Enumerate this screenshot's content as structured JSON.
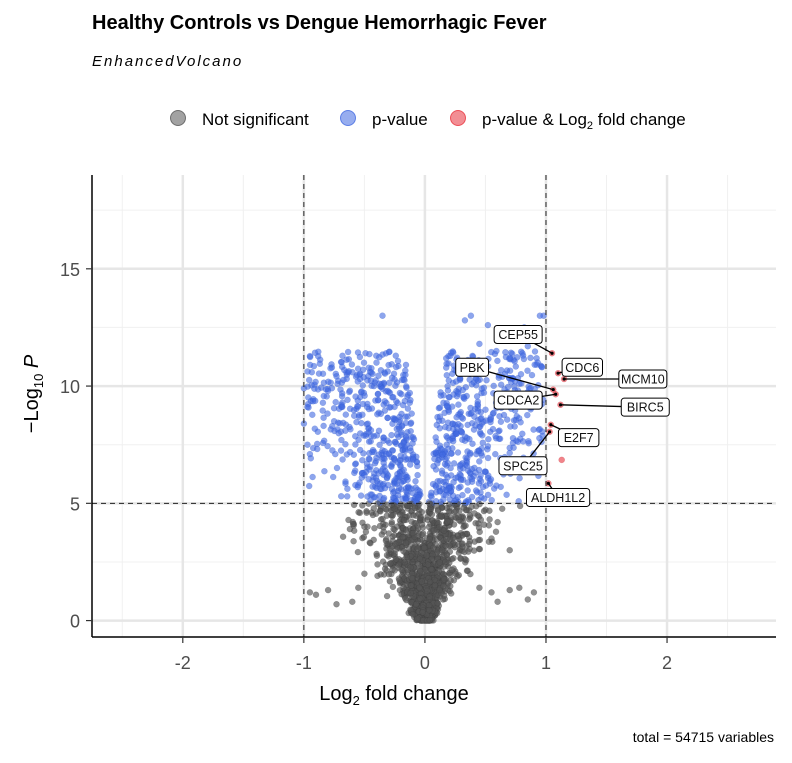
{
  "chart_data": {
    "type": "scatter",
    "title": "Healthy Controls vs Dengue Hemorrhagic Fever",
    "subtitle": "EnhancedVolcano",
    "caption": "total = 54715 variables",
    "xlabel": {
      "main": "Log",
      "sub": "2",
      "rest": " fold change"
    },
    "ylabel": {
      "prefix": "−Log",
      "sub": "10",
      "var": " P"
    },
    "xlim": [
      -2.75,
      2.9
    ],
    "ylim": [
      -0.7,
      19
    ],
    "xticks": [
      -2,
      -1,
      0,
      1,
      2
    ],
    "xtick_labels": [
      "-2",
      "-1",
      "0",
      "1",
      "2"
    ],
    "yticks": [
      0,
      5,
      10,
      15
    ],
    "ytick_labels": [
      "0",
      "5",
      "10",
      "15"
    ],
    "grid": true,
    "legend_position": "top",
    "cutoffs": {
      "log2fc": [
        -1,
        1
      ],
      "neglog10p": 5
    },
    "series": [
      {
        "name": "Not significant",
        "color": "#555555"
      },
      {
        "name": "p-value",
        "color": "#4169e1"
      },
      {
        "name": "p-value &  Log",
        "sub": "2",
        "rest": " fold change",
        "color": "#e8323c"
      }
    ],
    "highlighted": [
      {
        "label": "CEP55",
        "x": 1.05,
        "y": 11.4,
        "lx": 0.77,
        "ly": 12.2
      },
      {
        "label": "CDC6",
        "x": 1.1,
        "y": 10.55,
        "lx": 1.3,
        "ly": 10.8
      },
      {
        "label": "MCM10",
        "x": 1.15,
        "y": 10.3,
        "lx": 1.8,
        "ly": 10.3
      },
      {
        "label": "PBK",
        "x": 1.06,
        "y": 9.85,
        "lx": 0.39,
        "ly": 10.8
      },
      {
        "label": "CDCA2",
        "x": 1.08,
        "y": 9.65,
        "lx": 0.77,
        "ly": 9.4
      },
      {
        "label": "BIRC5",
        "x": 1.12,
        "y": 9.2,
        "lx": 1.82,
        "ly": 9.1
      },
      {
        "label": "E2F7",
        "x": 1.04,
        "y": 8.35,
        "lx": 1.27,
        "ly": 7.8
      },
      {
        "label": "SPC25",
        "x": 1.03,
        "y": 8.05,
        "lx": 0.81,
        "ly": 6.6
      },
      {
        "label": "ALDH1L2",
        "x": 1.02,
        "y": 5.85,
        "lx": 1.1,
        "ly": 5.25
      },
      {
        "label": "",
        "x": 1.13,
        "y": 6.85
      }
    ]
  }
}
